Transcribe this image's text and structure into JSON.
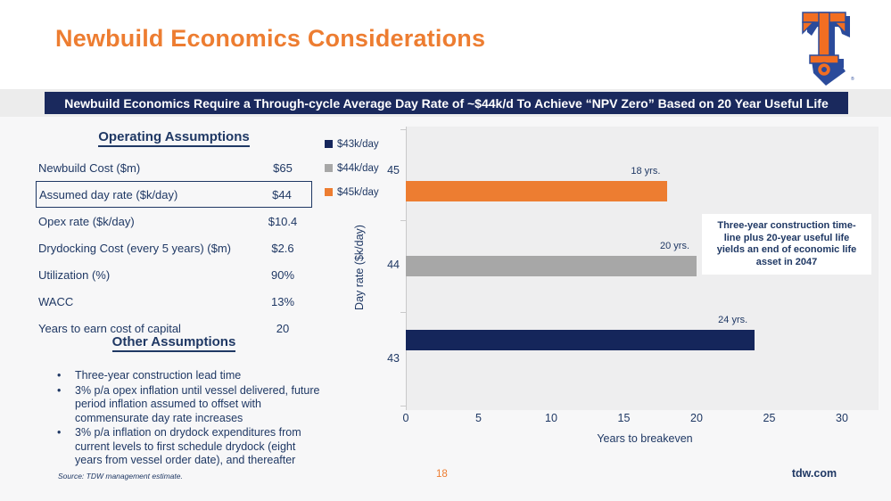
{
  "slide": {
    "title": "Newbuild Economics Considerations",
    "banner": "Newbuild Economics Require a Through-cycle Average Day Rate of ~$44k/d To Achieve “NPV Zero” Based on 20 Year Useful Life",
    "page_number": "18",
    "website": "tdw.com",
    "source_note": "Source: TDW management estimate.",
    "logo": {
      "name": "tidewater-anchor-logo",
      "registered_mark": "®",
      "orange": "#F26E22",
      "blue": "#2B4B9B"
    }
  },
  "operating_assumptions": {
    "heading": "Operating Assumptions",
    "rows": [
      {
        "label": "Newbuild Cost ($m)",
        "value": "$65",
        "highlighted": false
      },
      {
        "label": "Assumed day rate ($k/day)",
        "value": "$44",
        "highlighted": true
      },
      {
        "label": "Opex rate ($k/day)",
        "value": "$10.4",
        "highlighted": false
      },
      {
        "label": "Drydocking Cost (every 5 years) ($m)",
        "value": "$2.6",
        "highlighted": false
      },
      {
        "label": "Utilization (%)",
        "value": "90%",
        "highlighted": false
      },
      {
        "label": "WACC",
        "value": "13%",
        "highlighted": false
      },
      {
        "label": "Years to earn cost of capital",
        "value": "20",
        "highlighted": false
      }
    ]
  },
  "other_assumptions": {
    "heading": "Other Assumptions",
    "bullets": [
      "Three-year construction lead time",
      "3% p/a opex inflation until vessel delivered, future period inflation assumed to offset with commensurate day rate increases",
      "3% p/a inflation on drydock expenditures from current levels to first schedule drydock (eight years from vessel order date), and thereafter"
    ]
  },
  "chart_data": {
    "type": "bar",
    "orientation": "horizontal",
    "title": "",
    "xlabel": "Years to breakeven",
    "ylabel": "Day rate ($k/day)",
    "xlim": [
      0,
      30
    ],
    "xticks": [
      0,
      5,
      10,
      15,
      20,
      25,
      30
    ],
    "ytick_labels_top_to_bottom": [
      "45",
      "44",
      "43"
    ],
    "grid": false,
    "legend_position": "top-left",
    "legend": [
      {
        "label": "$43k/day",
        "color": "#15265B"
      },
      {
        "label": "$44k/day",
        "color": "#A7A7A7"
      },
      {
        "label": "$45k/day",
        "color": "#ED7D31"
      }
    ],
    "bars_top_to_bottom": [
      {
        "series": "$45k/day",
        "day_rate_k": 45,
        "years_to_breakeven": 18,
        "data_label": "18 yrs.",
        "color": "#ED7D31"
      },
      {
        "series": "$44k/day",
        "day_rate_k": 44,
        "years_to_breakeven": 20,
        "data_label": "20 yrs.",
        "color": "#A7A7A7"
      },
      {
        "series": "$43k/day",
        "day_rate_k": 43,
        "years_to_breakeven": 24,
        "data_label": "24 yrs.",
        "color": "#15265B"
      }
    ],
    "annotation_lines": [
      "Three-year construction time-",
      "line plus 20-year useful life",
      "yields an end of economic life",
      "asset in 2047"
    ]
  },
  "colors": {
    "accent_orange": "#ED7D31",
    "navy_text": "#1F3864",
    "banner_navy": "#1A295D",
    "bar_navy": "#15265B",
    "bar_gray": "#A7A7A7"
  }
}
